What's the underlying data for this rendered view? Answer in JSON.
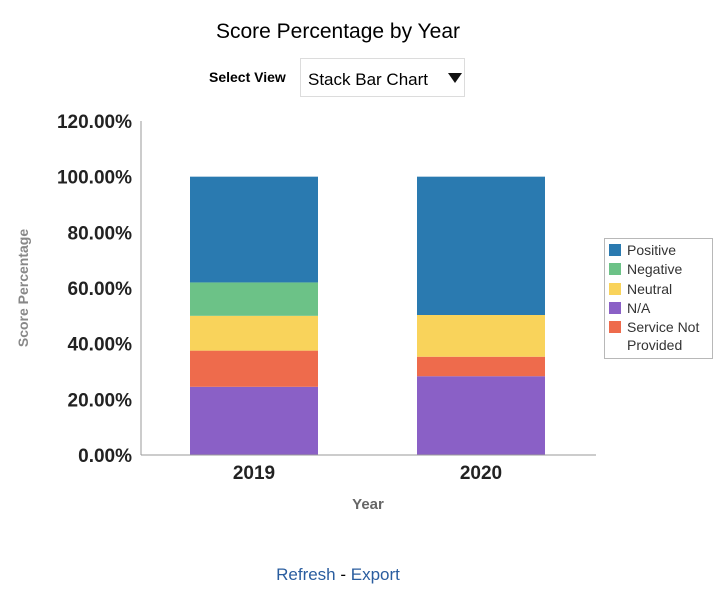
{
  "header": {
    "title": "Score Percentage by Year",
    "select_label": "Select View",
    "select_value": "Stack Bar Chart"
  },
  "footer": {
    "refresh": "Refresh",
    "separator": " - ",
    "export": "Export"
  },
  "chart_data": {
    "type": "bar",
    "stacked": true,
    "categories": [
      "2019",
      "2020"
    ],
    "xlabel": "Year",
    "ylabel": "Score Percentage",
    "ylim": [
      0,
      120
    ],
    "yticks": [
      "0.00%",
      "20.00%",
      "40.00%",
      "60.00%",
      "80.00%",
      "100.00%",
      "120.00%"
    ],
    "legend_position": "right",
    "series": [
      {
        "name": "N/A",
        "color": "#8a60c6",
        "values": [
          24.5,
          28.3
        ]
      },
      {
        "name": "Service Not Provided",
        "color": "#ee6b4c",
        "values": [
          13.0,
          7.0
        ]
      },
      {
        "name": "Neutral",
        "color": "#f9d35b",
        "values": [
          12.5,
          15.0
        ]
      },
      {
        "name": "Negative",
        "color": "#6cc287",
        "values": [
          12.0,
          0.0
        ]
      },
      {
        "name": "Positive",
        "color": "#2a7ab0",
        "values": [
          38.0,
          49.7
        ]
      }
    ],
    "legend": [
      {
        "name": "Positive",
        "color": "#2a7ab0"
      },
      {
        "name": "Negative",
        "color": "#6cc287"
      },
      {
        "name": "Neutral",
        "color": "#f9d35b"
      },
      {
        "name": "N/A",
        "color": "#8a60c6"
      },
      {
        "name": "Service Not",
        "name_line2": "Provided",
        "color": "#ee6b4c"
      }
    ]
  }
}
